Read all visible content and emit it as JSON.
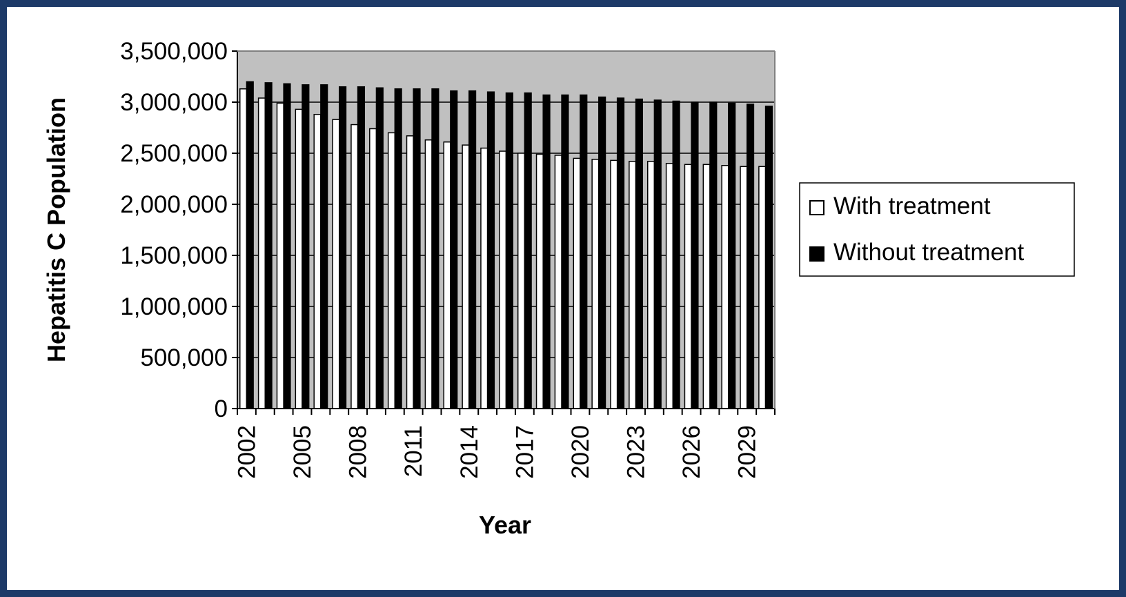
{
  "colors": {
    "frame": "#1d3a68",
    "plot_background": "#c0c0c0",
    "with_treatment": "#ffffff",
    "without_treatment": "#000000"
  },
  "chart_data": {
    "type": "bar",
    "title": "",
    "xlabel": "Year",
    "ylabel": "Hepatitis C Population",
    "ylim": [
      0,
      3500000
    ],
    "yticks": [
      0,
      500000,
      1000000,
      1500000,
      2000000,
      2500000,
      3000000,
      3500000
    ],
    "ytick_labels": [
      "0",
      "500,000",
      "1,000,000",
      "1,500,000",
      "2,000,000",
      "2,500,000",
      "3,000,000",
      "3,500,000"
    ],
    "x_tick_labels_shown": [
      "2002",
      "2005",
      "2008",
      "2011",
      "2014",
      "2017",
      "2020",
      "2023",
      "2026",
      "2029"
    ],
    "grid": "horizontal major gridlines",
    "legend_position": "right",
    "categories": [
      "2002",
      "2003",
      "2004",
      "2005",
      "2006",
      "2007",
      "2008",
      "2009",
      "2010",
      "2011",
      "2012",
      "2013",
      "2014",
      "2015",
      "2016",
      "2017",
      "2018",
      "2019",
      "2020",
      "2021",
      "2022",
      "2023",
      "2024",
      "2025",
      "2026",
      "2027",
      "2028",
      "2029",
      "2030"
    ],
    "series": [
      {
        "name": "With treatment",
        "color": "#ffffff",
        "values": [
          3130000,
          3040000,
          2990000,
          2930000,
          2880000,
          2830000,
          2780000,
          2740000,
          2700000,
          2670000,
          2630000,
          2610000,
          2580000,
          2550000,
          2520000,
          2500000,
          2490000,
          2480000,
          2450000,
          2440000,
          2430000,
          2420000,
          2420000,
          2400000,
          2390000,
          2390000,
          2380000,
          2370000,
          2370000
        ]
      },
      {
        "name": "Without treatment",
        "color": "#000000",
        "values": [
          3200000,
          3190000,
          3180000,
          3170000,
          3170000,
          3150000,
          3150000,
          3140000,
          3130000,
          3130000,
          3130000,
          3110000,
          3110000,
          3100000,
          3090000,
          3090000,
          3070000,
          3070000,
          3070000,
          3050000,
          3040000,
          3030000,
          3020000,
          3010000,
          3000000,
          3000000,
          2990000,
          2980000,
          2960000
        ]
      }
    ]
  }
}
